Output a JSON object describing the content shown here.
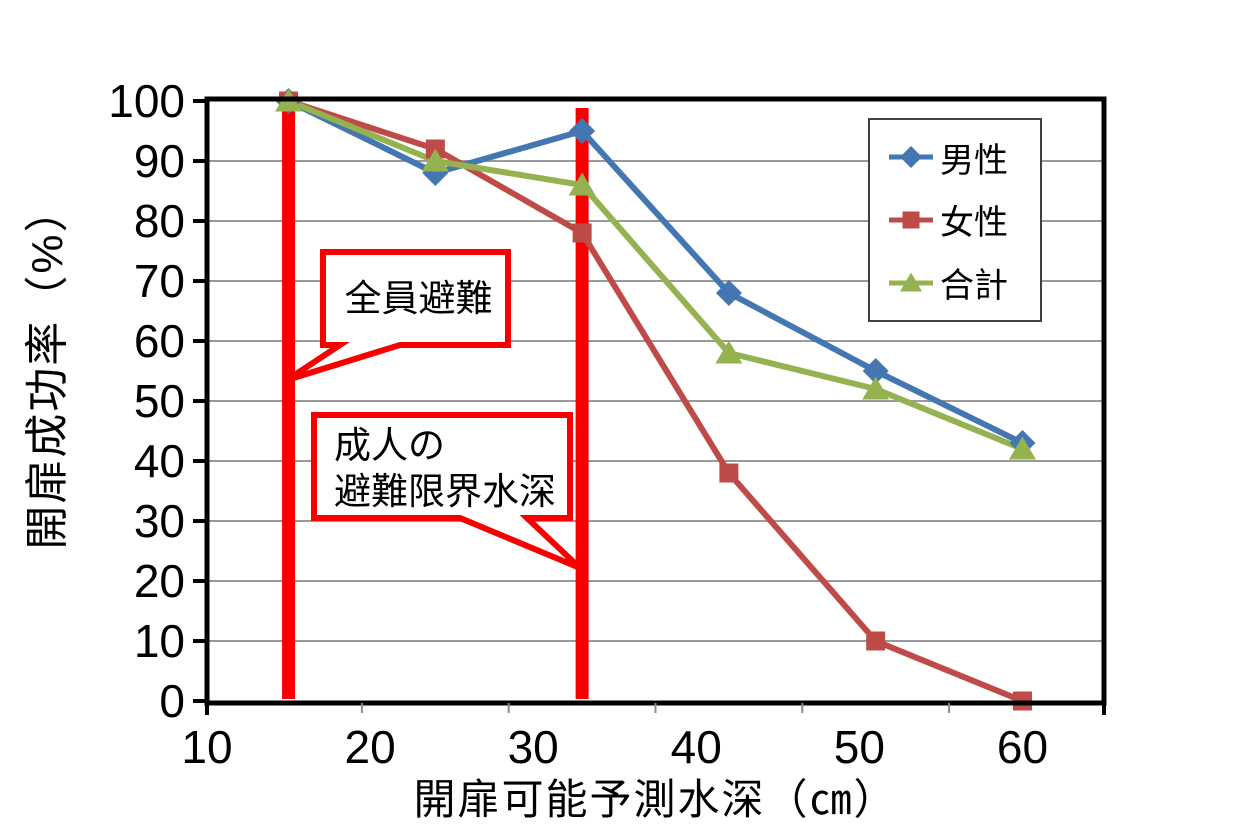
{
  "chart_data": {
    "type": "line",
    "title": "",
    "xlabel": "開扉可能予測水深（㎝）",
    "ylabel": "開扉成功率（%）",
    "x": [
      15,
      24,
      33,
      42,
      51,
      60
    ],
    "series": [
      {
        "name": "男性",
        "marker": "diamond",
        "color": "#4476B2",
        "values": [
          100,
          88,
          95,
          68,
          55,
          43
        ]
      },
      {
        "name": "女性",
        "marker": "square",
        "color": "#BF4B49",
        "values": [
          100,
          92,
          78,
          38,
          10,
          0
        ]
      },
      {
        "name": "合計",
        "marker": "triangle",
        "color": "#94B24F",
        "values": [
          100,
          90,
          86,
          58,
          52,
          42
        ]
      }
    ],
    "x_ticks": [
      10,
      20,
      30,
      40,
      50,
      60
    ],
    "y_ticks": [
      0,
      10,
      20,
      30,
      40,
      50,
      60,
      70,
      80,
      90,
      100
    ],
    "xlim": [
      10,
      65
    ],
    "ylim": [
      0,
      100
    ],
    "grid": "horizontal",
    "legend_position": "top-right-inside",
    "annotations": [
      {
        "type": "vline",
        "x": 15,
        "label": "全員避難",
        "color": "#F90000"
      },
      {
        "type": "vline",
        "x": 33,
        "label": "成人の\n避難限界水深",
        "color": "#F90000"
      }
    ]
  },
  "colors": {
    "annotation_red": "#F90000",
    "gridline": "#9A9A9A",
    "axis": "#000000",
    "minor_tick": "#8C8C8C",
    "legend_border": "#3F3F3F",
    "background": "#FFFFFF"
  }
}
